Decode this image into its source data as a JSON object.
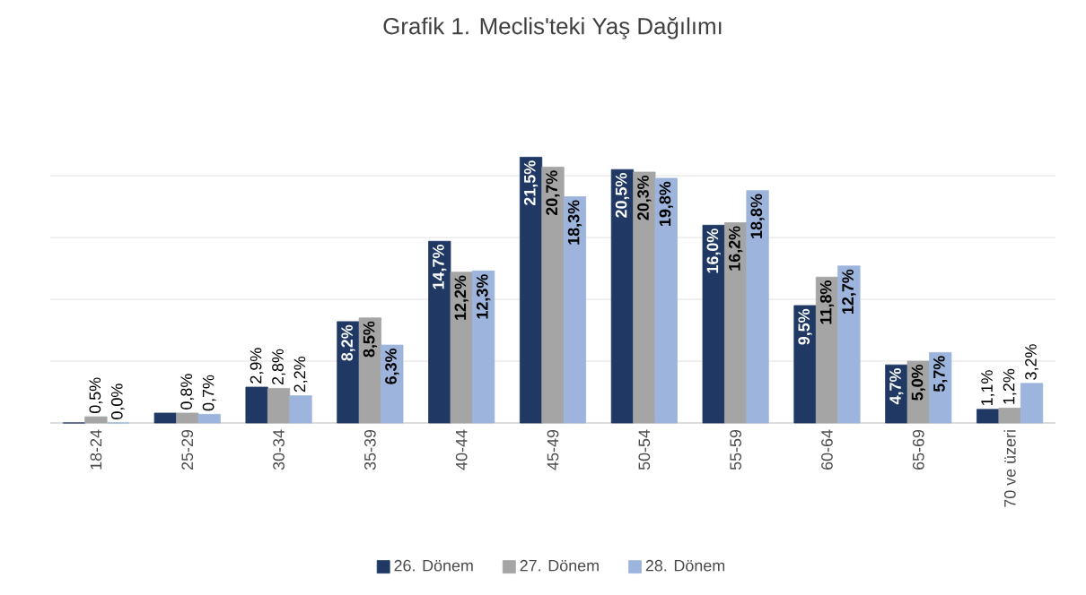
{
  "chart_data": {
    "type": "bar",
    "title": "Grafik 1. Meclis'teki Yaş Dağılımı",
    "categories": [
      "18-24",
      "25-29",
      "30-34",
      "35-39",
      "40-44",
      "45-49",
      "50-54",
      "55-59",
      "60-64",
      "65-69",
      "70 ve üzeri"
    ],
    "series": [
      {
        "name": "26. Dönem",
        "color": "#203864",
        "values": [
          0,
          0.8,
          2.9,
          8.2,
          14.7,
          21.5,
          20.5,
          16.0,
          9.5,
          4.7,
          1.1
        ],
        "value_labels": [
          null,
          null,
          "2,9%",
          "8,2%",
          "14,7%",
          "21,5%",
          "20,5%",
          "16,0%",
          "9,5%",
          "4,7%",
          "1,1%"
        ]
      },
      {
        "name": "27. Dönem",
        "color": "#a5a5a5",
        "values": [
          0.5,
          0.8,
          2.8,
          8.5,
          12.2,
          20.7,
          20.3,
          16.2,
          11.8,
          5.0,
          1.2
        ],
        "value_labels": [
          "0,5%",
          "0,8%",
          "2,8%",
          "8,5%",
          "12,2%",
          "20,7%",
          "20,3%",
          "16,2%",
          "11,8%",
          "5,0%",
          "1,2%"
        ]
      },
      {
        "name": "28. Dönem",
        "color": "#9db5dc",
        "values": [
          0.0,
          0.7,
          2.2,
          6.3,
          12.3,
          18.3,
          19.8,
          18.8,
          12.7,
          5.7,
          3.2
        ],
        "value_labels": [
          "0,0%",
          "0,7%",
          "2,2%",
          "6,3%",
          "12,3%",
          "18,3%",
          "19,8%",
          "18,8%",
          "12,7%",
          "5,7%",
          "3,2%"
        ]
      }
    ],
    "tick_labels": "x",
    "grid": "y",
    "legend": "bottom"
  }
}
